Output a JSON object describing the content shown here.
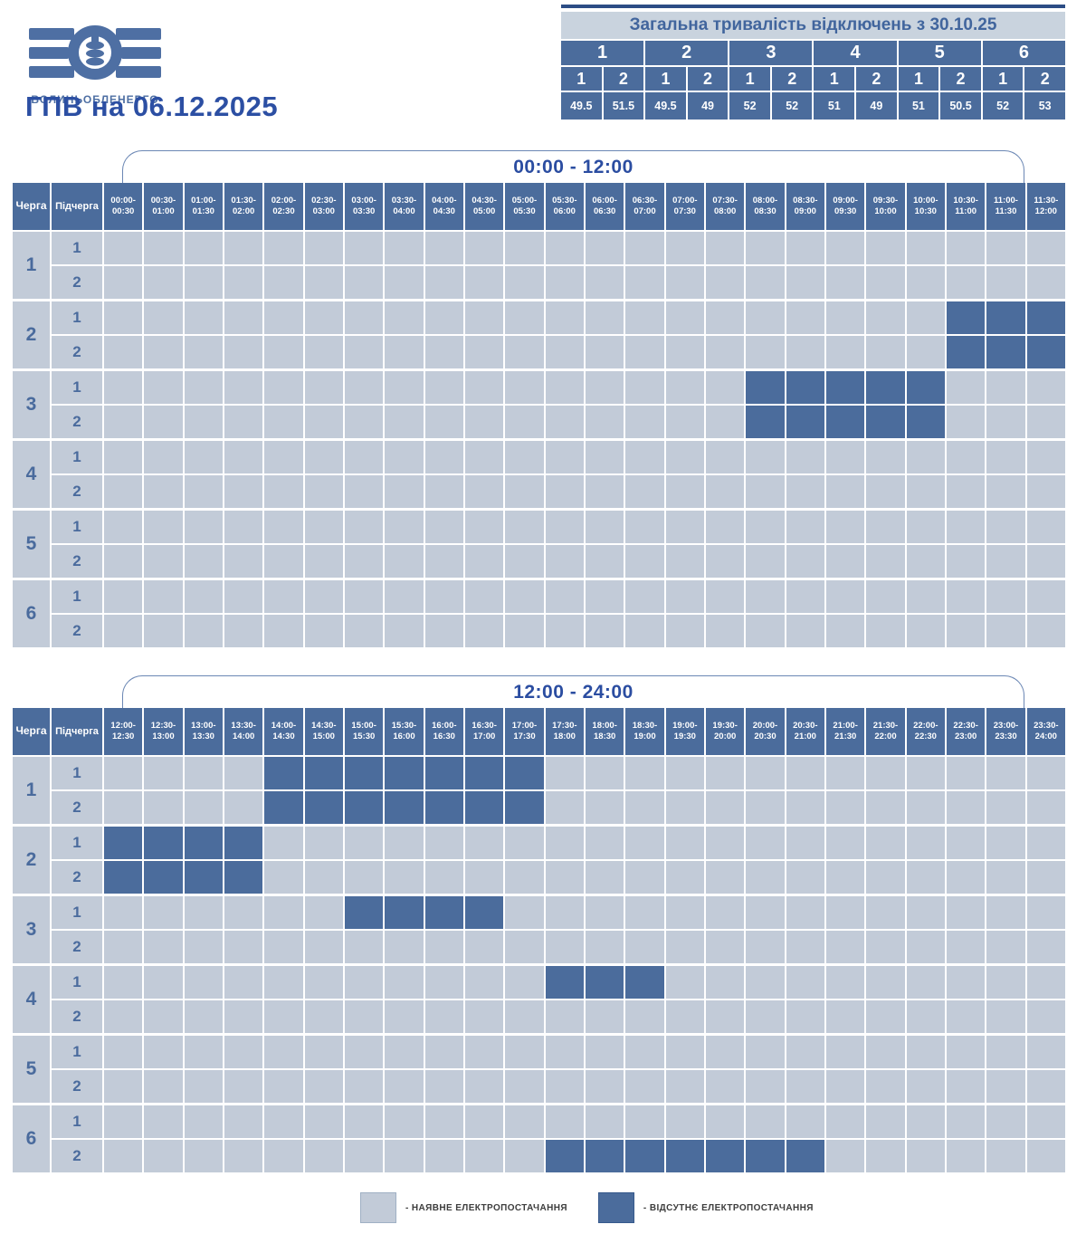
{
  "page": {
    "title": "ГПВ на 06.12.2025"
  },
  "logo": {
    "name": "ЗОЕ",
    "subtitle": "ВОЛИНЬОБЛЕНЕРГО"
  },
  "summary": {
    "title": "Загальна тривалість відключень з 30.10.25",
    "groups": [
      "1",
      "2",
      "3",
      "4",
      "5",
      "6"
    ],
    "subgroups": [
      "1",
      "2",
      "1",
      "2",
      "1",
      "2",
      "1",
      "2",
      "1",
      "2",
      "1",
      "2"
    ],
    "values": [
      "49.5",
      "51.5",
      "49.5",
      "49",
      "52",
      "52",
      "51",
      "49",
      "51",
      "50.5",
      "52",
      "53"
    ]
  },
  "grid_headers": {
    "queue": "Черга",
    "subqueue": "Підчерга"
  },
  "legend": {
    "available": "- НАЯВНЕ ЕЛЕКТРОПОСТАЧАННЯ",
    "absent": "- ВІДСУТНЄ ЕЛЕКТРОПОСТАЧАННЯ"
  },
  "colors": {
    "outage": "#4b6c9c",
    "available": "#c2cbd8",
    "title_blue": "#2c4fa3",
    "summary_title_bg": "#c9d3de"
  },
  "tables": [
    {
      "label": "00:00 - 12:00",
      "slots": [
        "00:00-00:30",
        "00:30-01:00",
        "01:00-01:30",
        "01:30-02:00",
        "02:00-02:30",
        "02:30-03:00",
        "03:00-03:30",
        "03:30-04:00",
        "04:00-04:30",
        "04:30-05:00",
        "05:00-05:30",
        "05:30-06:00",
        "06:00-06:30",
        "06:30-07:00",
        "07:00-07:30",
        "07:30-08:00",
        "08:00-08:30",
        "08:30-09:00",
        "09:00-09:30",
        "09:30-10:00",
        "10:00-10:30",
        "10:30-11:00",
        "11:00-11:30",
        "11:30-12:00"
      ],
      "rows": [
        {
          "queue": "1",
          "sub": "1",
          "outages": []
        },
        {
          "queue": "1",
          "sub": "2",
          "outages": []
        },
        {
          "queue": "2",
          "sub": "1",
          "outages": [
            21,
            22,
            23
          ]
        },
        {
          "queue": "2",
          "sub": "2",
          "outages": [
            21,
            22,
            23
          ]
        },
        {
          "queue": "3",
          "sub": "1",
          "outages": [
            16,
            17,
            18,
            19,
            20
          ]
        },
        {
          "queue": "3",
          "sub": "2",
          "outages": [
            16,
            17,
            18,
            19,
            20
          ]
        },
        {
          "queue": "4",
          "sub": "1",
          "outages": []
        },
        {
          "queue": "4",
          "sub": "2",
          "outages": []
        },
        {
          "queue": "5",
          "sub": "1",
          "outages": []
        },
        {
          "queue": "5",
          "sub": "2",
          "outages": []
        },
        {
          "queue": "6",
          "sub": "1",
          "outages": []
        },
        {
          "queue": "6",
          "sub": "2",
          "outages": []
        }
      ]
    },
    {
      "label": "12:00 - 24:00",
      "slots": [
        "12:00-12:30",
        "12:30-13:00",
        "13:00-13:30",
        "13:30-14:00",
        "14:00-14:30",
        "14:30-15:00",
        "15:00-15:30",
        "15:30-16:00",
        "16:00-16:30",
        "16:30-17:00",
        "17:00-17:30",
        "17:30-18:00",
        "18:00-18:30",
        "18:30-19:00",
        "19:00-19:30",
        "19:30-20:00",
        "20:00-20:30",
        "20:30-21:00",
        "21:00-21:30",
        "21:30-22:00",
        "22:00-22:30",
        "22:30-23:00",
        "23:00-23:30",
        "23:30-24:00"
      ],
      "rows": [
        {
          "queue": "1",
          "sub": "1",
          "outages": [
            4,
            5,
            6,
            7,
            8,
            9,
            10
          ]
        },
        {
          "queue": "1",
          "sub": "2",
          "outages": [
            4,
            5,
            6,
            7,
            8,
            9,
            10
          ]
        },
        {
          "queue": "2",
          "sub": "1",
          "outages": [
            0,
            1,
            2,
            3
          ]
        },
        {
          "queue": "2",
          "sub": "2",
          "outages": [
            0,
            1,
            2,
            3
          ]
        },
        {
          "queue": "3",
          "sub": "1",
          "outages": [
            6,
            7,
            8,
            9
          ]
        },
        {
          "queue": "3",
          "sub": "2",
          "outages": []
        },
        {
          "queue": "4",
          "sub": "1",
          "outages": [
            11,
            12,
            13
          ]
        },
        {
          "queue": "4",
          "sub": "2",
          "outages": []
        },
        {
          "queue": "5",
          "sub": "1",
          "outages": []
        },
        {
          "queue": "5",
          "sub": "2",
          "outages": []
        },
        {
          "queue": "6",
          "sub": "1",
          "outages": []
        },
        {
          "queue": "6",
          "sub": "2",
          "outages": [
            11,
            12,
            13,
            14,
            15,
            16,
            17
          ]
        }
      ]
    }
  ],
  "chart_data": {
    "type": "heatmap",
    "title": "ГПВ на 06.12.2025",
    "x": "30-minute intervals, 00:00–24:00",
    "rows": [
      "1.1",
      "1.2",
      "2.1",
      "2.2",
      "3.1",
      "3.2",
      "4.1",
      "4.2",
      "5.1",
      "5.2",
      "6.1",
      "6.2"
    ],
    "outage_intervals": {
      "1.1": [
        "14:00-17:30"
      ],
      "1.2": [
        "14:00-17:30"
      ],
      "2.1": [
        "10:30-14:00"
      ],
      "2.2": [
        "10:30-14:00"
      ],
      "3.1": [
        "08:00-10:30",
        "15:00-17:00"
      ],
      "3.2": [
        "08:00-10:30"
      ],
      "4.1": [
        "17:30-19:00"
      ],
      "4.2": [],
      "5.1": [],
      "5.2": [],
      "6.1": [],
      "6.2": [
        "17:30-21:00"
      ]
    },
    "total_outage_hours_since_30_10_25": {
      "1.1": 49.5,
      "1.2": 51.5,
      "2.1": 49.5,
      "2.2": 49,
      "3.1": 52,
      "3.2": 52,
      "4.1": 51,
      "4.2": 49,
      "5.1": 51,
      "5.2": 50.5,
      "6.1": 52,
      "6.2": 53
    }
  }
}
